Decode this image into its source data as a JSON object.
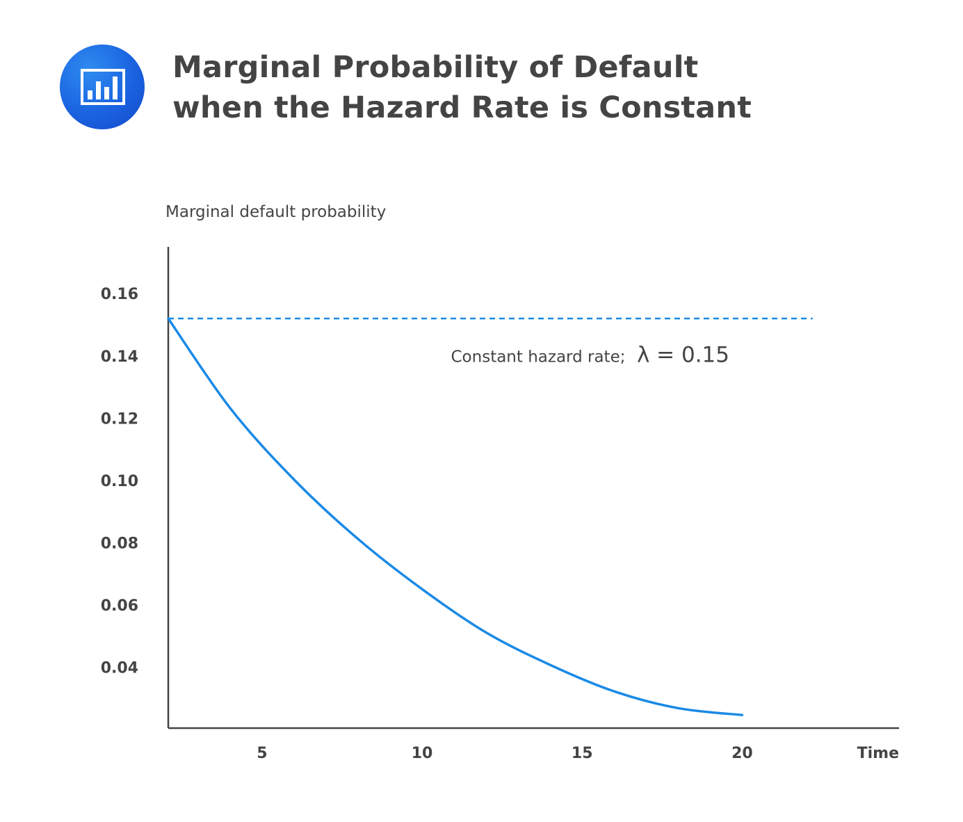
{
  "header": {
    "icon": "bar-chart-icon",
    "accent_color": "#1a63e0",
    "title_line1": "Marginal Probability of Default",
    "title_line2": "when the Hazard Rate is Constant"
  },
  "chart_data": {
    "type": "line",
    "title": "Marginal Probability of Default when the Hazard Rate is Constant",
    "ylabel": "Marginal default probability",
    "xlabel": "Time",
    "x_ticks": [
      "5",
      "10",
      "15",
      "20"
    ],
    "y_ticks": [
      "0.16",
      "0.14",
      "0.12",
      "0.10",
      "0.08",
      "0.06",
      "0.04"
    ],
    "xlim": [
      2.07,
      24.9
    ],
    "ylim": [
      0.0205,
      0.175
    ],
    "grid": false,
    "series": [
      {
        "color": "#1a8ae6",
        "x": [
          2.07,
          4,
          6,
          8,
          10,
          12,
          14,
          16,
          18,
          20
        ],
        "y": [
          0.152,
          0.1233,
          0.1003,
          0.0812,
          0.0651,
          0.0512,
          0.0408,
          0.0323,
          0.0269,
          0.0247
        ]
      }
    ],
    "reference_line": {
      "y": 0.152,
      "x_range": [
        2.07,
        22.2
      ],
      "style": "dashed",
      "color": "#1a8ae6"
    },
    "annotation": {
      "text_a": "Constant hazard rate;",
      "text_b": "λ = 0.15",
      "x": 10.9,
      "y": 0.138
    }
  }
}
